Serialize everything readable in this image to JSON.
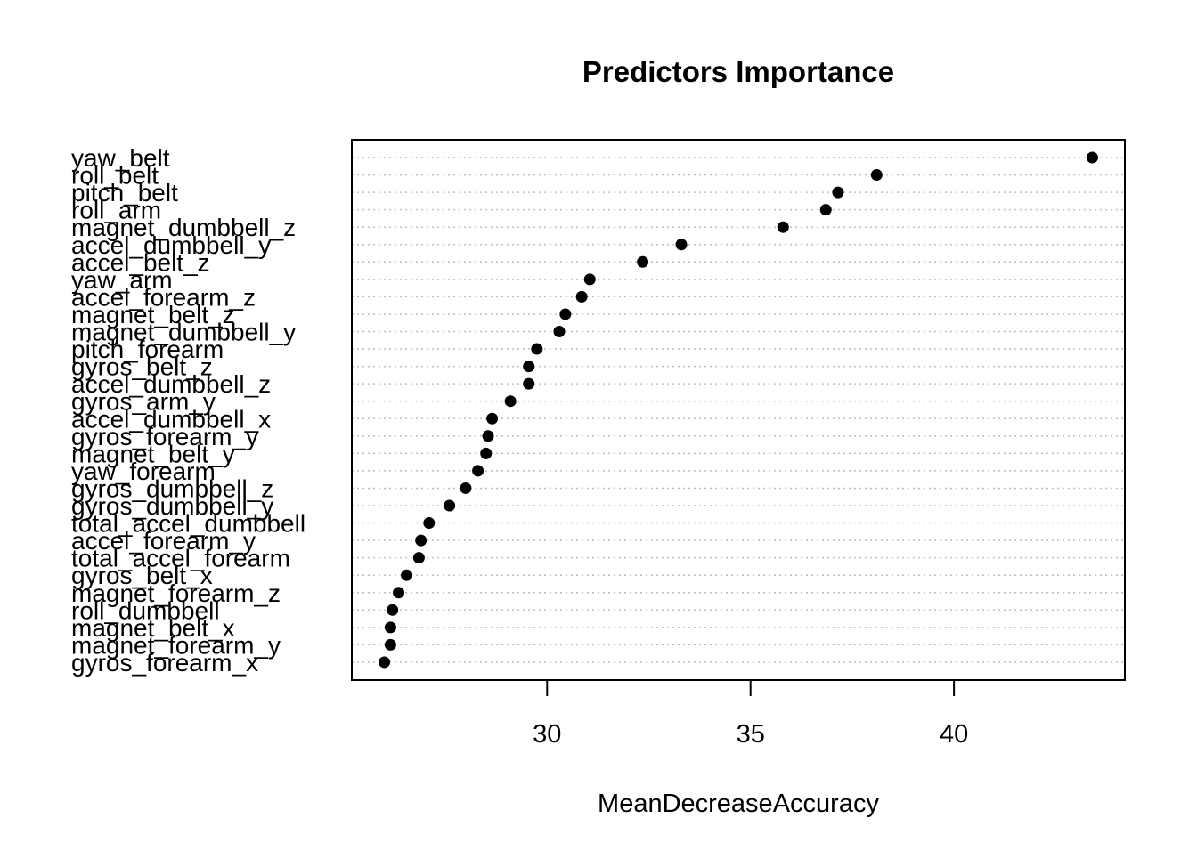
{
  "chart_data": {
    "type": "scatter",
    "title": "Predictors Importance",
    "xlabel": "MeanDecreaseAccuracy",
    "ylabel": "",
    "xlim": [
      25.2,
      44.2
    ],
    "xticks": [
      30,
      35,
      40
    ],
    "grid": "dotted-horizontal",
    "colors": {
      "point": "#000000",
      "grid": "#bebebe",
      "frame": "#000000"
    },
    "categories": [
      "yaw_belt",
      "roll_belt",
      "pitch_belt",
      "roll_arm",
      "magnet_dumbbell_z",
      "accel_dumbbell_y",
      "accel_belt_z",
      "yaw_arm",
      "accel_forearm_z",
      "magnet_belt_z",
      "magnet_dumbbell_y",
      "pitch_forearm",
      "gyros_belt_z",
      "accel_dumbbell_z",
      "gyros_arm_y",
      "accel_dumbbell_x",
      "gyros_forearm_y",
      "magnet_belt_y",
      "yaw_forearm",
      "gyros_dumbbell_z",
      "gyros_dumbbell_y",
      "total_accel_dumbbell",
      "accel_forearm_y",
      "total_accel_forearm",
      "gyros_belt_x",
      "magnet_forearm_z",
      "roll_dumbbell",
      "magnet_belt_x",
      "magnet_forearm_y",
      "gyros_forearm_x"
    ],
    "values": [
      43.4,
      38.1,
      37.15,
      36.85,
      35.8,
      33.3,
      32.35,
      31.05,
      30.85,
      30.45,
      30.3,
      29.75,
      29.55,
      29.55,
      29.1,
      28.65,
      28.55,
      28.5,
      28.3,
      28.0,
      27.6,
      27.1,
      26.9,
      26.85,
      26.55,
      26.35,
      26.2,
      26.15,
      26.15,
      26.0
    ]
  }
}
